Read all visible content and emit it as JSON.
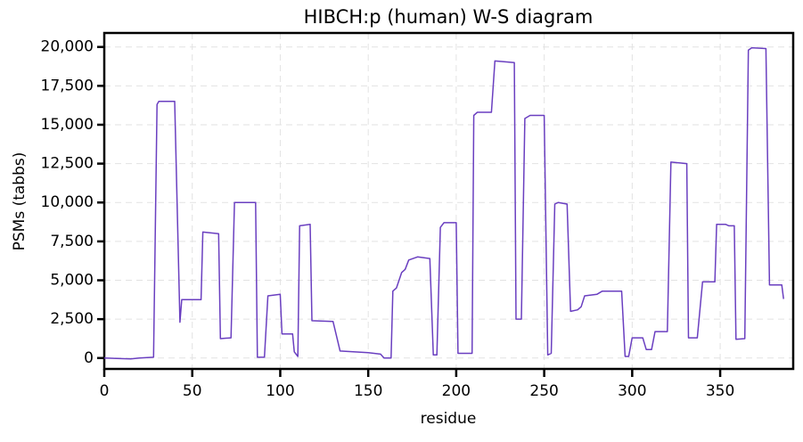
{
  "chart_data": {
    "type": "line",
    "title": "HIBCH:p (human) W-S diagram",
    "x_label": "residue",
    "y_label": "PSMs (tabbs)",
    "grid": true,
    "xlim": [
      0,
      392
    ],
    "ylim": [
      -700,
      20900
    ],
    "xticks": [
      0,
      50,
      100,
      150,
      200,
      250,
      300,
      350
    ],
    "yticks": [
      0,
      {
        "value": 2500,
        "label": "2,500"
      },
      {
        "value": 5000,
        "label": "5,000"
      },
      {
        "value": 7500,
        "label": "7,500"
      },
      {
        "value": 10000,
        "label": "10,000"
      },
      {
        "value": 12500,
        "label": "12,500"
      },
      {
        "value": 15000,
        "label": "15,000"
      },
      {
        "value": 17500,
        "label": "17,500"
      },
      {
        "value": 20000,
        "label": "20,000"
      }
    ],
    "series": [
      {
        "color": "#6a3fc0",
        "x": [
          0,
          15,
          20,
          28,
          30,
          31,
          40,
          43,
          44,
          55,
          56,
          65,
          66,
          72,
          74,
          86,
          87,
          91,
          93,
          100,
          101,
          107,
          108,
          110,
          111,
          117,
          118,
          130,
          134,
          150,
          157,
          159,
          163,
          164,
          166,
          169,
          171,
          173,
          178,
          185,
          187,
          189,
          191,
          193,
          200,
          201,
          209,
          210,
          212,
          220,
          222,
          233,
          234,
          237,
          239,
          242,
          250,
          252,
          254,
          256,
          258,
          263,
          265,
          269,
          271,
          273,
          280,
          283,
          294,
          296,
          298,
          300,
          306,
          308,
          311,
          313,
          320,
          322,
          331,
          332,
          337,
          340,
          347,
          348,
          353,
          355,
          358,
          359,
          364,
          366,
          368,
          376,
          378,
          385,
          386
        ],
        "values": [
          0,
          -50,
          0,
          50,
          16300,
          16500,
          16500,
          2300,
          3750,
          3750,
          8100,
          8000,
          1250,
          1300,
          10000,
          10000,
          50,
          50,
          4000,
          4100,
          1550,
          1550,
          400,
          100,
          8500,
          8600,
          2400,
          2350,
          450,
          350,
          250,
          0,
          0,
          4300,
          4500,
          5500,
          5700,
          6300,
          6500,
          6400,
          200,
          200,
          8400,
          8700,
          8700,
          300,
          300,
          15600,
          15800,
          15800,
          19100,
          19000,
          2500,
          2500,
          15400,
          15600,
          15600,
          200,
          300,
          9900,
          10000,
          9900,
          3000,
          3100,
          3300,
          4000,
          4100,
          4300,
          4300,
          100,
          100,
          1300,
          1300,
          550,
          550,
          1700,
          1700,
          12600,
          12500,
          1300,
          1300,
          4900,
          4900,
          8600,
          8600,
          8500,
          8500,
          1200,
          1250,
          19800,
          19950,
          19900,
          4700,
          4700,
          3800
        ]
      }
    ]
  }
}
